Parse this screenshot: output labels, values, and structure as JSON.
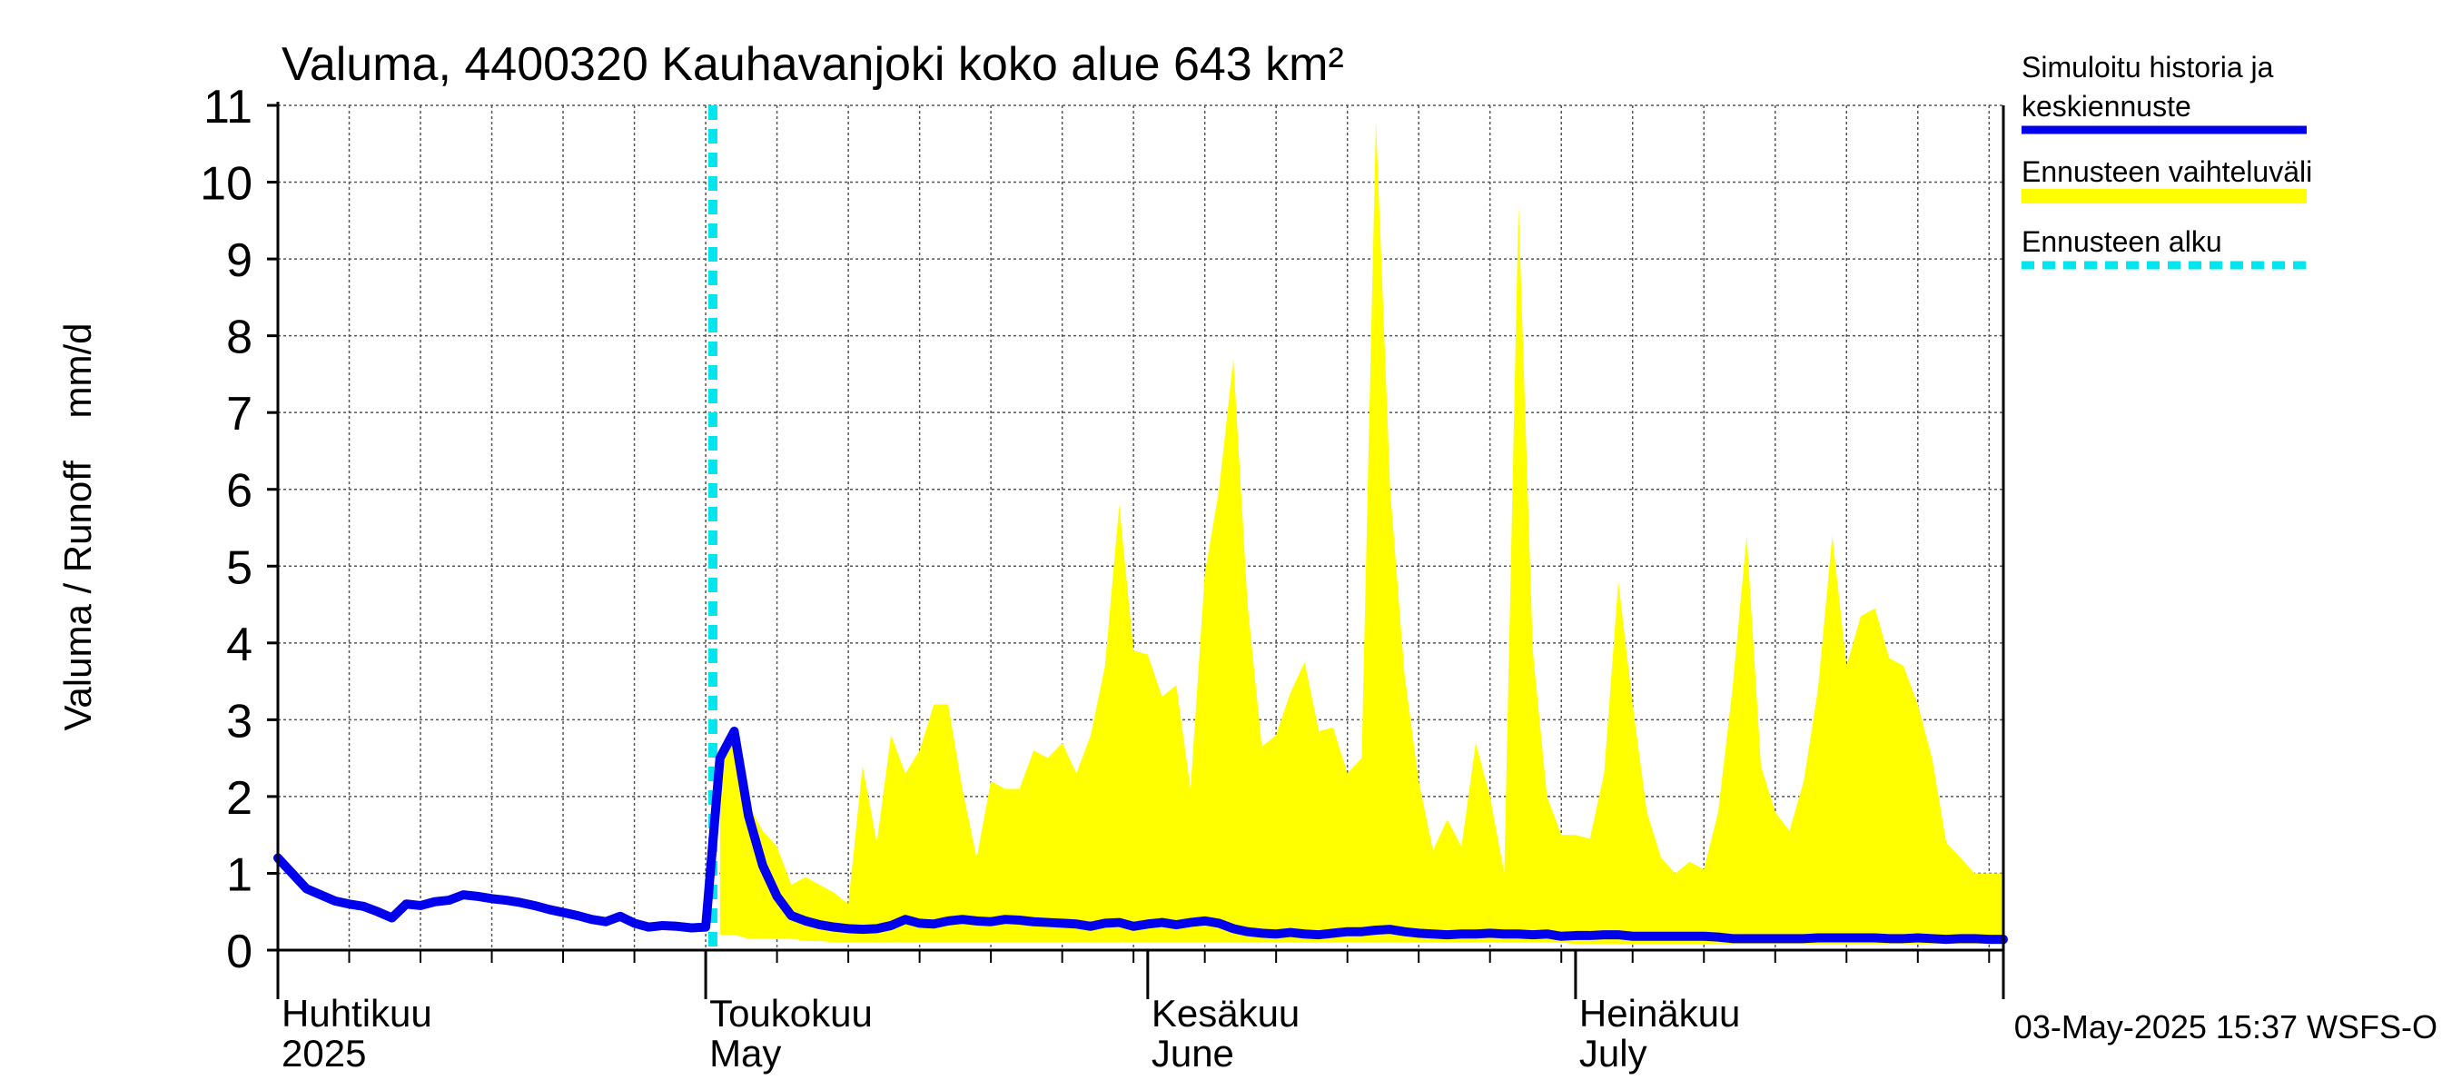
{
  "chart_data": {
    "type": "area",
    "title": "Valuma, 4400320 Kauhavanjoki koko alue 643 km²",
    "ylabel": "Valuma / Runoff    mm/d",
    "ylim": [
      0,
      11
    ],
    "yticks": [
      0,
      1,
      2,
      3,
      4,
      5,
      6,
      7,
      8,
      9,
      10,
      11
    ],
    "xlim_days": [
      0,
      121
    ],
    "grid": true,
    "month_labels": [
      {
        "fi": "Huhtikuu",
        "en": "2025",
        "day": 0
      },
      {
        "fi": "Toukokuu",
        "en": "May",
        "day": 30
      },
      {
        "fi": "Kesäkuu",
        "en": "June",
        "day": 61
      },
      {
        "fi": "Heinäkuu",
        "en": "July",
        "day": 91
      }
    ],
    "forecast_start_day": 30.5,
    "legend": {
      "placement": "right",
      "entries": [
        {
          "label_line1": "Simuloitu historia ja",
          "label_line2": "keskiennuste",
          "color": "#0000ee",
          "style": "solid"
        },
        {
          "label_line1": "Ennusteen vaihteluväli",
          "label_line2": "",
          "color": "#ffff00",
          "style": "band"
        },
        {
          "label_line1": "Ennusteen alku",
          "label_line2": "",
          "color": "#00e5ee",
          "style": "dashed"
        }
      ]
    },
    "timestamp": "03-May-2025 15:37 WSFS-O",
    "series": [
      {
        "name": "Simuloitu historia ja keskiennuste",
        "color": "#0000ee",
        "x": [
          0,
          1,
          2,
          3,
          4,
          5,
          6,
          7,
          8,
          9,
          10,
          11,
          12,
          13,
          14,
          15,
          16,
          17,
          18,
          19,
          20,
          21,
          22,
          23,
          24,
          25,
          26,
          27,
          28,
          29,
          30,
          31,
          32,
          33,
          34,
          35,
          36,
          37,
          38,
          39,
          40,
          41,
          42,
          43,
          44,
          45,
          46,
          47,
          48,
          49,
          50,
          51,
          52,
          53,
          54,
          55,
          56,
          57,
          58,
          59,
          60,
          61,
          62,
          63,
          64,
          65,
          66,
          67,
          68,
          69,
          70,
          71,
          72,
          73,
          74,
          75,
          76,
          77,
          78,
          79,
          80,
          81,
          82,
          83,
          84,
          85,
          86,
          87,
          88,
          89,
          90,
          91,
          92,
          93,
          94,
          95,
          96,
          97,
          98,
          99,
          100,
          101,
          102,
          103,
          104,
          105,
          106,
          107,
          108,
          109,
          110,
          111,
          112,
          113,
          114,
          115,
          116,
          117,
          118,
          119,
          120,
          121
        ],
        "values": [
          1.2,
          1.0,
          0.8,
          0.72,
          0.64,
          0.6,
          0.57,
          0.5,
          0.42,
          0.6,
          0.58,
          0.63,
          0.65,
          0.72,
          0.7,
          0.67,
          0.65,
          0.62,
          0.58,
          0.53,
          0.49,
          0.45,
          0.4,
          0.37,
          0.44,
          0.35,
          0.3,
          0.32,
          0.31,
          0.29,
          0.3,
          2.5,
          2.85,
          1.75,
          1.1,
          0.7,
          0.45,
          0.38,
          0.33,
          0.3,
          0.28,
          0.27,
          0.28,
          0.32,
          0.4,
          0.35,
          0.34,
          0.38,
          0.4,
          0.38,
          0.37,
          0.4,
          0.39,
          0.37,
          0.36,
          0.35,
          0.34,
          0.31,
          0.35,
          0.36,
          0.31,
          0.34,
          0.36,
          0.33,
          0.36,
          0.38,
          0.35,
          0.28,
          0.24,
          0.22,
          0.21,
          0.23,
          0.21,
          0.2,
          0.22,
          0.24,
          0.24,
          0.26,
          0.27,
          0.24,
          0.22,
          0.21,
          0.2,
          0.21,
          0.21,
          0.22,
          0.21,
          0.21,
          0.2,
          0.21,
          0.18,
          0.19,
          0.19,
          0.2,
          0.2,
          0.18,
          0.18,
          0.18,
          0.18,
          0.18,
          0.18,
          0.17,
          0.15,
          0.15,
          0.15,
          0.15,
          0.15,
          0.15,
          0.16,
          0.16,
          0.16,
          0.16,
          0.16,
          0.15,
          0.15,
          0.16,
          0.15,
          0.14,
          0.15,
          0.15,
          0.14,
          0.14
        ]
      },
      {
        "name": "Ennusteen vaihteluväli",
        "color": "#ffff00",
        "x": [
          31,
          32,
          33,
          34,
          35,
          36,
          37,
          38,
          39,
          40,
          41,
          42,
          43,
          44,
          45,
          46,
          47,
          48,
          49,
          50,
          51,
          52,
          53,
          54,
          55,
          56,
          57,
          58,
          59,
          60,
          61,
          62,
          63,
          64,
          65,
          66,
          67,
          68,
          69,
          70,
          71,
          72,
          73,
          74,
          75,
          76,
          77,
          78,
          79,
          80,
          81,
          82,
          83,
          84,
          85,
          86,
          87,
          88,
          89,
          90,
          91,
          92,
          93,
          94,
          95,
          96,
          97,
          98,
          99,
          100,
          101,
          102,
          103,
          104,
          105,
          106,
          107,
          108,
          109,
          110,
          111,
          112,
          113,
          114,
          115,
          116,
          117,
          118,
          119,
          120,
          121
        ],
        "upper": [
          2.5,
          2.9,
          1.9,
          1.55,
          1.35,
          0.85,
          0.95,
          0.85,
          0.75,
          0.6,
          2.4,
          1.4,
          2.8,
          2.3,
          2.6,
          3.2,
          3.2,
          2.1,
          1.2,
          2.2,
          2.1,
          2.1,
          2.6,
          2.5,
          2.7,
          2.3,
          2.8,
          3.7,
          5.8,
          3.9,
          3.85,
          3.3,
          3.45,
          2.1,
          4.9,
          6.0,
          7.7,
          4.5,
          2.65,
          2.8,
          3.35,
          3.75,
          2.85,
          2.9,
          2.3,
          2.5,
          10.8,
          6.0,
          3.6,
          2.2,
          1.3,
          1.7,
          1.35,
          2.7,
          2.0,
          1.0,
          9.7,
          3.9,
          2.0,
          1.5,
          1.5,
          1.45,
          2.3,
          4.8,
          3.2,
          1.8,
          1.2,
          1.0,
          1.15,
          1.05,
          1.8,
          3.4,
          5.4,
          2.4,
          1.8,
          1.55,
          2.2,
          3.4,
          5.4,
          3.7,
          4.35,
          4.45,
          3.8,
          3.7,
          3.2,
          2.5,
          1.4,
          1.2,
          1.0,
          1.0,
          1.0
        ],
        "lower": [
          0.2,
          0.2,
          0.15,
          0.15,
          0.15,
          0.15,
          0.12,
          0.12,
          0.1,
          0.1,
          0.1,
          0.1,
          0.1,
          0.1,
          0.1,
          0.1,
          0.1,
          0.1,
          0.1,
          0.1,
          0.1,
          0.1,
          0.1,
          0.1,
          0.1,
          0.1,
          0.1,
          0.1,
          0.1,
          0.1,
          0.1,
          0.1,
          0.1,
          0.1,
          0.1,
          0.1,
          0.1,
          0.1,
          0.1,
          0.1,
          0.1,
          0.1,
          0.1,
          0.1,
          0.1,
          0.1,
          0.1,
          0.1,
          0.1,
          0.1,
          0.1,
          0.1,
          0.1,
          0.1,
          0.1,
          0.1,
          0.1,
          0.1,
          0.1,
          0.1,
          0.08,
          0.08,
          0.08,
          0.08,
          0.08,
          0.08,
          0.08,
          0.08,
          0.08,
          0.08,
          0.08,
          0.08,
          0.08,
          0.08,
          0.08,
          0.08,
          0.08,
          0.08,
          0.08,
          0.08,
          0.08,
          0.08,
          0.08,
          0.08,
          0.08,
          0.08,
          0.08,
          0.08,
          0.08,
          0.08,
          0.08
        ]
      }
    ]
  }
}
